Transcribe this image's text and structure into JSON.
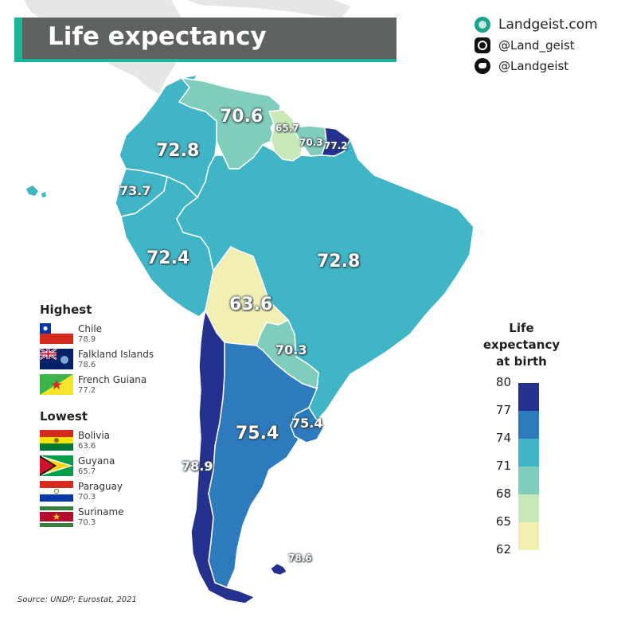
{
  "title": "Life expectancy",
  "brand": {
    "site": "Landgeist.com",
    "instagram": "@Land_geist",
    "twitter": "@Landgeist",
    "icons": [
      "globe-icon",
      "instagram-icon",
      "twitter-icon"
    ]
  },
  "map_labels": {
    "venezuela": "70.6",
    "colombia": "72.8",
    "guyana": "65.7",
    "suriname": "70.3",
    "french_guiana": "77.2",
    "ecuador": "73.7",
    "peru": "72.4",
    "brazil": "72.8",
    "bolivia": "63.6",
    "paraguay": "70.3",
    "argentina": "75.4",
    "uruguay": "75.4",
    "chile": "78.9",
    "falklands": "78.6"
  },
  "highest": {
    "heading": "Highest",
    "items": [
      {
        "name": "Chile",
        "value": "78.9"
      },
      {
        "name": "Falkland Islands",
        "value": "78.6"
      },
      {
        "name": "French Guiana",
        "value": "77.2"
      }
    ]
  },
  "lowest": {
    "heading": "Lowest",
    "items": [
      {
        "name": "Bolivia",
        "value": "63.6"
      },
      {
        "name": "Guyana",
        "value": "65.7"
      },
      {
        "name": "Paraguay",
        "value": "70.3"
      },
      {
        "name": "Suriname",
        "value": "70.3"
      }
    ]
  },
  "legend": {
    "title_lines": [
      "Life",
      "expectancy",
      "at birth"
    ],
    "ticks": [
      "80",
      "77",
      "74",
      "71",
      "68",
      "65",
      "62"
    ],
    "colors": [
      "#25318f",
      "#2d7bbd",
      "#40b5c6",
      "#80cdbc",
      "#c8e8b8",
      "#f2efb2"
    ]
  },
  "colors": {
    "title_bg": "#5d6162",
    "accent": "#1db59a",
    "land_other": "#e4e4e4"
  },
  "source": "Source: UNDP; Eurostat, 2021"
}
